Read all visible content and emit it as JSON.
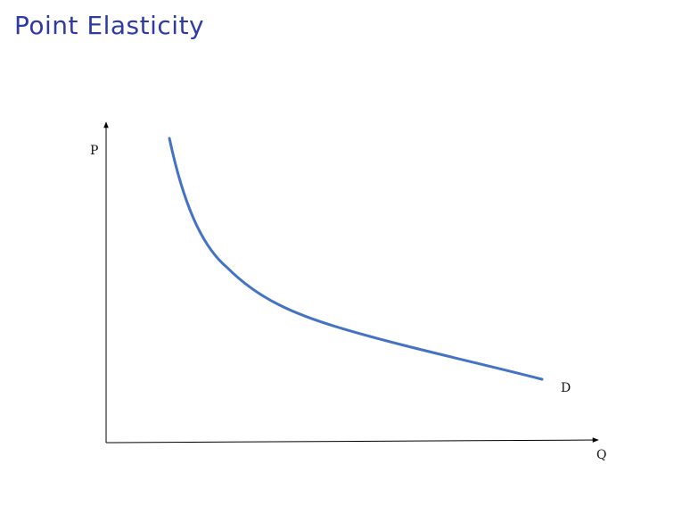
{
  "title": "Point Elasticity",
  "diagram": {
    "y_axis_label": "P",
    "x_axis_label": "Q",
    "curve_label": "D",
    "axis_color": "#000000",
    "curve_color": "#4472c4"
  }
}
